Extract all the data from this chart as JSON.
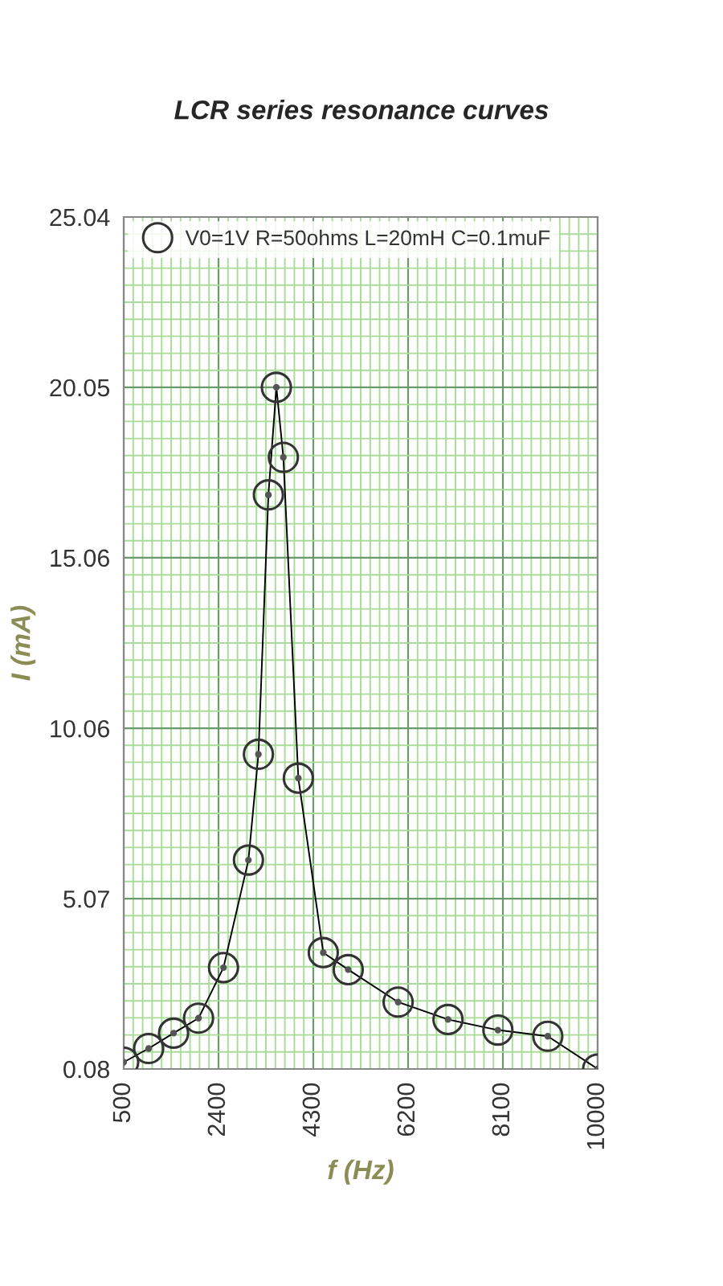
{
  "chart_data": {
    "type": "line",
    "title": "LCR series resonance curves",
    "xlabel": "f (Hz)",
    "ylabel": "I (mA)",
    "series": [
      {
        "name": "V0=1V R=50ohms L=20mH C=0.1muF",
        "color": "#000000",
        "x": [
          500,
          1000,
          1500,
          2000,
          2500,
          3000,
          3200,
          3400,
          3560,
          3700,
          4000,
          4500,
          5000,
          6000,
          7000,
          8000,
          9000,
          10000
        ],
        "values": [
          0.28,
          0.68,
          1.13,
          1.57,
          3.05,
          6.2,
          9.3,
          16.9,
          20.05,
          18.0,
          8.6,
          3.49,
          2.99,
          2.04,
          1.53,
          1.22,
          1.04,
          0.08
        ]
      }
    ],
    "xlim": [
      500,
      10000
    ],
    "xticks": [
      500,
      {
        "value": 690,
        "label": null
      },
      {
        "value": 880,
        "label": null
      },
      {
        "value": 1070,
        "label": null
      },
      {
        "value": 1260,
        "label": null
      },
      {
        "value": 1450,
        "label": null
      },
      {
        "value": 1640,
        "label": null
      },
      {
        "value": 1830,
        "label": null
      },
      {
        "value": 2020,
        "label": null
      },
      {
        "value": 2210,
        "label": null
      },
      2400,
      {
        "value": 2590,
        "label": null
      },
      {
        "value": 2780,
        "label": null
      },
      {
        "value": 2970,
        "label": null
      },
      {
        "value": 3160,
        "label": null
      },
      {
        "value": 3350,
        "label": null
      },
      {
        "value": 3540,
        "label": null
      },
      {
        "value": 3730,
        "label": null
      },
      {
        "value": 3920,
        "label": null
      },
      {
        "value": 4110,
        "label": null
      },
      4300,
      {
        "value": 4490,
        "label": null
      },
      {
        "value": 4680,
        "label": null
      },
      {
        "value": 4870,
        "label": null
      },
      {
        "value": 5060,
        "label": null
      },
      {
        "value": 5250,
        "label": null
      },
      {
        "value": 5440,
        "label": null
      },
      {
        "value": 5630,
        "label": null
      },
      {
        "value": 5820,
        "label": null
      },
      {
        "value": 6010,
        "label": null
      },
      6200,
      {
        "value": 6390,
        "label": null
      },
      {
        "value": 6580,
        "label": null
      },
      {
        "value": 6770,
        "label": null
      },
      {
        "value": 6960,
        "label": null
      },
      {
        "value": 7150,
        "label": null
      },
      {
        "value": 7340,
        "label": null
      },
      {
        "value": 7530,
        "label": null
      },
      {
        "value": 7720,
        "label": null
      },
      {
        "value": 7910,
        "label": null
      },
      8100,
      {
        "value": 8290,
        "label": null
      },
      {
        "value": 8480,
        "label": null
      },
      {
        "value": 8670,
        "label": null
      },
      {
        "value": 8860,
        "label": null
      },
      {
        "value": 9050,
        "label": null
      },
      {
        "value": 9240,
        "label": null
      },
      {
        "value": 9430,
        "label": null
      },
      {
        "value": 9620,
        "label": null
      },
      {
        "value": 9810,
        "label": null
      },
      10000
    ],
    "ylim": [
      0.08,
      25.04
    ],
    "yticks": [
      0.08,
      {
        "value": 0.579,
        "label": null
      },
      {
        "value": 1.078,
        "label": null
      },
      {
        "value": 1.578,
        "label": null
      },
      {
        "value": 2.077,
        "label": null
      },
      {
        "value": 2.576,
        "label": null
      },
      {
        "value": 3.075,
        "label": null
      },
      {
        "value": 3.574,
        "label": null
      },
      {
        "value": 4.074,
        "label": null
      },
      {
        "value": 4.573,
        "label": null
      },
      5.07,
      {
        "value": 5.571,
        "label": null
      },
      {
        "value": 6.07,
        "label": null
      },
      {
        "value": 6.57,
        "label": null
      },
      {
        "value": 7.069,
        "label": null
      },
      {
        "value": 7.568,
        "label": null
      },
      {
        "value": 8.067,
        "label": null
      },
      {
        "value": 8.566,
        "label": null
      },
      {
        "value": 9.066,
        "label": null
      },
      {
        "value": 9.565,
        "label": null
      },
      10.06,
      {
        "value": 10.563,
        "label": null
      },
      {
        "value": 11.062,
        "label": null
      },
      {
        "value": 11.562,
        "label": null
      },
      {
        "value": 12.061,
        "label": null
      },
      {
        "value": 12.56,
        "label": null
      },
      {
        "value": 13.059,
        "label": null
      },
      {
        "value": 13.558,
        "label": null
      },
      {
        "value": 14.058,
        "label": null
      },
      {
        "value": 14.557,
        "label": null
      },
      15.06,
      {
        "value": 15.555,
        "label": null
      },
      {
        "value": 16.054,
        "label": null
      },
      {
        "value": 16.554,
        "label": null
      },
      {
        "value": 17.053,
        "label": null
      },
      {
        "value": 17.552,
        "label": null
      },
      {
        "value": 18.051,
        "label": null
      },
      {
        "value": 18.55,
        "label": null
      },
      {
        "value": 19.05,
        "label": null
      },
      {
        "value": 19.549,
        "label": null
      },
      20.05,
      {
        "value": 20.547,
        "label": null
      },
      {
        "value": 21.046,
        "label": null
      },
      {
        "value": 21.546,
        "label": null
      },
      {
        "value": 22.045,
        "label": null
      },
      {
        "value": 22.544,
        "label": null
      },
      {
        "value": 23.043,
        "label": null
      },
      {
        "value": 23.542,
        "label": null
      },
      {
        "value": 24.042,
        "label": null
      },
      {
        "value": 24.541,
        "label": null
      },
      25.04
    ],
    "grid": true,
    "legend": "top left",
    "marker": "circle",
    "line_style": "solid"
  }
}
